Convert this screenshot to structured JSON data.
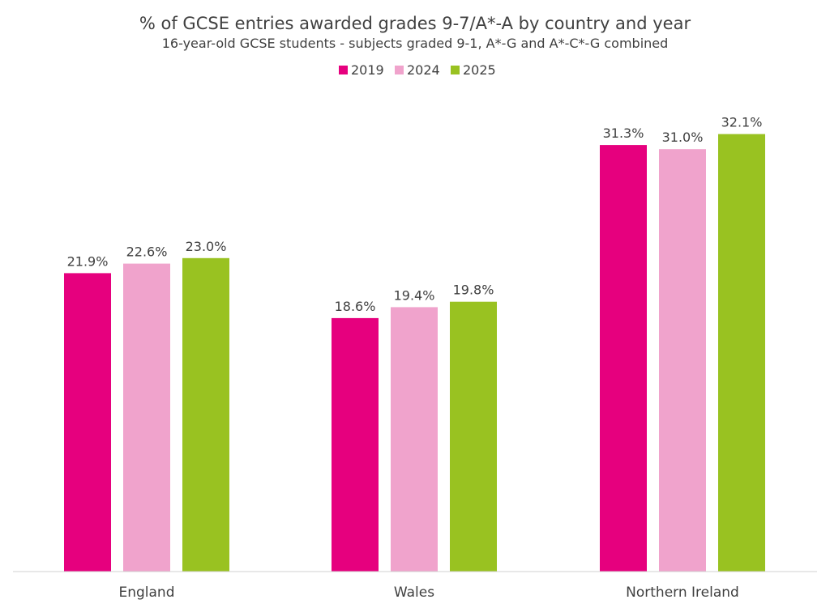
{
  "chart_data": {
    "type": "bar",
    "title": "% of GCSE entries awarded grades 9-7/A*-A by country and year",
    "subtitle": "16-year-old GCSE students - subjects graded 9-1, A*-G and A*-C*-G combined",
    "categories": [
      "England",
      "Wales",
      "Northern Ireland"
    ],
    "series": [
      {
        "name": "2019",
        "color": "#e6007e",
        "values": [
          21.9,
          18.6,
          31.3
        ],
        "labels": [
          "21.9%",
          "18.6%",
          "31.3%"
        ]
      },
      {
        "name": "2024",
        "color": "#f0a3cc",
        "values": [
          22.6,
          19.4,
          31.0
        ],
        "labels": [
          "22.6%",
          "19.4%",
          "31.0%"
        ]
      },
      {
        "name": "2025",
        "color": "#99c221",
        "values": [
          23.0,
          19.8,
          32.1
        ],
        "labels": [
          "23.0%",
          "19.8%",
          "32.1%"
        ]
      }
    ],
    "ylim": [
      0,
      36
    ],
    "xlabel": "",
    "ylabel": "",
    "grid": false,
    "legend_position": "top-center",
    "axis_color": "#d0d0d0"
  }
}
